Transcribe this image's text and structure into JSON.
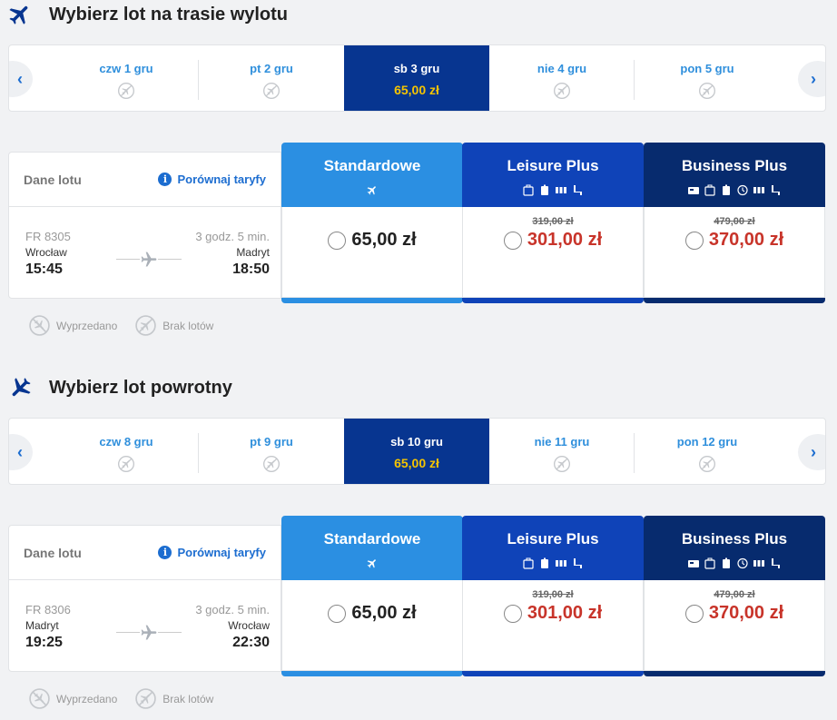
{
  "outbound": {
    "title": "Wybierz lot na trasie wylotu",
    "days": [
      {
        "label": "czw 1 gru",
        "price": ""
      },
      {
        "label": "pt 2 gru",
        "price": ""
      },
      {
        "label": "sb 3 gru",
        "price": "65,00 zł"
      },
      {
        "label": "nie 4 gru",
        "price": ""
      },
      {
        "label": "pon 5 gru",
        "price": ""
      }
    ],
    "flight": {
      "header": "Dane lotu",
      "compare": "Porównaj taryfy",
      "number": "FR 8305",
      "duration": "3 godz. 5 min.",
      "from": "Wrocław",
      "to": "Madryt",
      "departure": "15:45",
      "arrival": "18:50"
    },
    "fares": {
      "standard": {
        "name": "Standardowe",
        "price": "65,00 zł"
      },
      "leisure": {
        "name": "Leisure Plus",
        "old_price": "319,00 zł",
        "price": "301,00 zł"
      },
      "business": {
        "name": "Business Plus",
        "old_price": "479,00 zł",
        "price": "370,00 zł"
      }
    },
    "legend": {
      "sold_out": "Wyprzedano",
      "no_flights": "Brak lotów"
    }
  },
  "return": {
    "title": "Wybierz lot powrotny",
    "days": [
      {
        "label": "czw 8 gru",
        "price": ""
      },
      {
        "label": "pt 9 gru",
        "price": ""
      },
      {
        "label": "sb 10 gru",
        "price": "65,00 zł"
      },
      {
        "label": "nie 11 gru",
        "price": ""
      },
      {
        "label": "pon 12 gru",
        "price": ""
      }
    ],
    "flight": {
      "header": "Dane lotu",
      "compare": "Porównaj taryfy",
      "number": "FR 8306",
      "duration": "3 godz. 5 min.",
      "from": "Madryt",
      "to": "Wrocław",
      "departure": "19:25",
      "arrival": "22:30"
    },
    "fares": {
      "standard": {
        "name": "Standardowe",
        "price": "65,00 zł"
      },
      "leisure": {
        "name": "Leisure Plus",
        "old_price": "319,00 zł",
        "price": "301,00 zł"
      },
      "business": {
        "name": "Business Plus",
        "old_price": "479,00 zł",
        "price": "370,00 zł"
      }
    },
    "legend": {
      "sold_out": "Wyprzedano",
      "no_flights": "Brak lotów"
    }
  },
  "colors": {
    "accent": "#073590",
    "link": "#1c6dd0",
    "promo_price": "#c8342a",
    "selected_price": "#f5c400"
  },
  "icons": {
    "header": "airplane-icon",
    "no_flight": "no-flight-icon",
    "sold_out": "sold-out-icon",
    "arrow_left": "chevron-left-icon",
    "arrow_right": "chevron-right-icon"
  }
}
